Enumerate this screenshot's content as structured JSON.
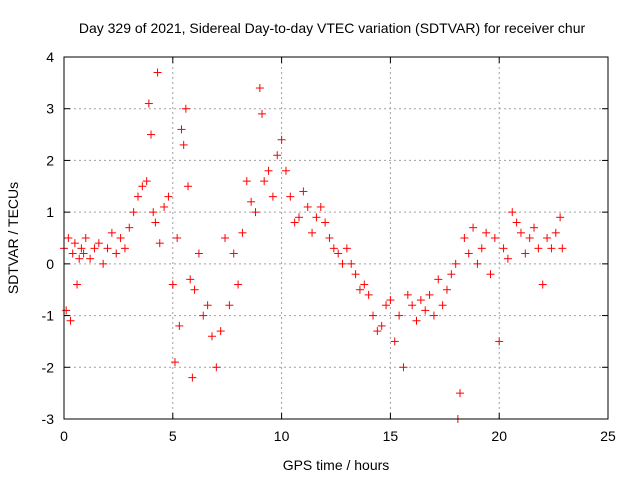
{
  "chart_data": {
    "type": "scatter",
    "title": "Day 329 of 2021, Sidereal Day-to-day VTEC variation (SDTVAR) for receiver chur",
    "xlabel": "GPS time / hours",
    "ylabel": "SDTVAR / TECUs",
    "xlim": [
      0,
      25
    ],
    "ylim": [
      -3,
      4
    ],
    "xticks": [
      "0",
      "5",
      "10",
      "15",
      "20",
      "25"
    ],
    "yticks": [
      "-3",
      "-2",
      "-1",
      "0",
      "1",
      "2",
      "3",
      "4"
    ],
    "grid": true,
    "marker": "+",
    "series_color": "#ff0000",
    "series": [
      {
        "name": "SDTVAR",
        "x": [
          0.0,
          0.1,
          0.2,
          0.3,
          0.4,
          0.5,
          0.6,
          0.7,
          0.8,
          0.9,
          1.0,
          1.2,
          1.4,
          1.6,
          1.8,
          2.0,
          2.2,
          2.4,
          2.6,
          2.8,
          3.0,
          3.2,
          3.4,
          3.6,
          3.8,
          3.9,
          4.0,
          4.1,
          4.2,
          4.3,
          4.4,
          4.6,
          4.8,
          5.0,
          5.1,
          5.2,
          5.3,
          5.4,
          5.5,
          5.6,
          5.7,
          5.8,
          5.9,
          6.0,
          6.2,
          6.4,
          6.6,
          6.8,
          7.0,
          7.2,
          7.4,
          7.6,
          7.8,
          8.0,
          8.2,
          8.4,
          8.6,
          8.8,
          9.0,
          9.1,
          9.2,
          9.4,
          9.6,
          9.8,
          10.0,
          10.2,
          10.4,
          10.6,
          10.8,
          11.0,
          11.2,
          11.4,
          11.6,
          11.8,
          12.0,
          12.2,
          12.4,
          12.6,
          12.8,
          13.0,
          13.2,
          13.4,
          13.6,
          13.8,
          14.0,
          14.2,
          14.4,
          14.6,
          14.8,
          15.0,
          15.2,
          15.4,
          15.6,
          15.8,
          16.0,
          16.2,
          16.4,
          16.6,
          16.8,
          17.0,
          17.2,
          17.4,
          17.6,
          17.8,
          18.0,
          18.1,
          18.2,
          18.4,
          18.6,
          18.8,
          19.0,
          19.2,
          19.4,
          19.6,
          19.8,
          20.0,
          20.2,
          20.4,
          20.6,
          20.8,
          21.0,
          21.2,
          21.4,
          21.6,
          21.8,
          22.0,
          22.2,
          22.4,
          22.6,
          22.8,
          22.9
        ],
        "y": [
          0.3,
          -0.9,
          0.5,
          -1.1,
          0.2,
          0.4,
          -0.4,
          0.1,
          0.3,
          0.2,
          0.5,
          0.1,
          0.3,
          0.4,
          0.0,
          0.3,
          0.6,
          0.2,
          0.5,
          0.3,
          0.7,
          1.0,
          1.3,
          1.5,
          1.6,
          3.1,
          2.5,
          1.0,
          0.8,
          3.7,
          0.4,
          1.1,
          1.3,
          -0.4,
          -1.9,
          0.5,
          -1.2,
          2.6,
          2.3,
          3.0,
          1.5,
          -0.3,
          -2.2,
          -0.5,
          0.2,
          -1.0,
          -0.8,
          -1.4,
          -2.0,
          -1.3,
          0.5,
          -0.8,
          0.2,
          -0.4,
          0.6,
          1.6,
          1.2,
          1.0,
          3.4,
          2.9,
          1.6,
          1.8,
          1.3,
          2.1,
          2.4,
          1.8,
          1.3,
          0.8,
          0.9,
          1.4,
          1.1,
          0.6,
          0.9,
          1.1,
          0.8,
          0.5,
          0.3,
          0.2,
          0.0,
          0.3,
          0.0,
          -0.2,
          -0.5,
          -0.4,
          -0.6,
          -1.0,
          -1.3,
          -1.2,
          -0.8,
          -0.7,
          -1.5,
          -1.0,
          -2.0,
          -0.6,
          -0.8,
          -1.1,
          -0.7,
          -0.9,
          -0.6,
          -1.0,
          -0.3,
          -0.8,
          -0.5,
          -0.2,
          0.0,
          -3.0,
          -2.5,
          0.5,
          0.2,
          0.7,
          0.0,
          0.3,
          0.6,
          -0.2,
          0.5,
          -1.5,
          0.3,
          0.1,
          1.0,
          0.8,
          0.6,
          0.2,
          0.5,
          0.7,
          0.3,
          -0.4,
          0.5,
          0.3,
          0.6,
          0.9,
          0.3
        ]
      }
    ]
  }
}
